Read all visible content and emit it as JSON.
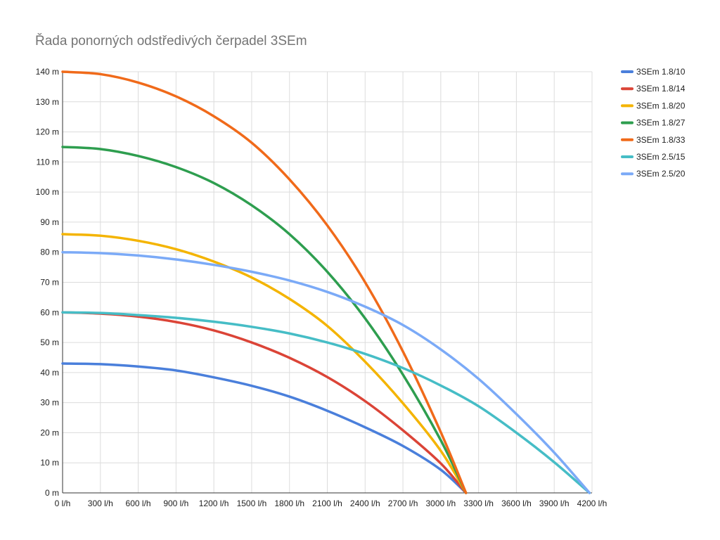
{
  "chart_data": {
    "type": "line",
    "title": "Řada ponorných odstředivých čerpadel 3SEm",
    "xlabel": "",
    "ylabel": "",
    "xlim": [
      0,
      4200
    ],
    "ylim": [
      0,
      140
    ],
    "x_ticks": [
      "0 l/h",
      "300 l/h",
      "600 l/h",
      "900 l/h",
      "1200 l/h",
      "1500 l/h",
      "1800 l/h",
      "2100 l/h",
      "2400 l/h",
      "2700 l/h",
      "3000 l/h",
      "3300 l/h",
      "3600 l/h",
      "3900 l/h",
      "4200 l/h"
    ],
    "y_ticks": [
      "0 m",
      "10 m",
      "20 m",
      "30 m",
      "40 m",
      "50 m",
      "60 m",
      "70 m",
      "80 m",
      "90 m",
      "100 m",
      "110 m",
      "120 m",
      "130 m",
      "140 m"
    ],
    "grid": true,
    "legend_position": "right",
    "series": [
      {
        "name": "3SEm 1.8/10",
        "color": "#4a7fdb",
        "points": [
          [
            0,
            43
          ],
          [
            300,
            42.8
          ],
          [
            600,
            42
          ],
          [
            900,
            40.7
          ],
          [
            1200,
            38.4
          ],
          [
            1500,
            35.6
          ],
          [
            1800,
            32
          ],
          [
            2100,
            27.3
          ],
          [
            2400,
            21.8
          ],
          [
            2700,
            15.6
          ],
          [
            3000,
            7.7
          ],
          [
            3200,
            0
          ]
        ]
      },
      {
        "name": "3SEm 1.8/14",
        "color": "#db4437",
        "points": [
          [
            0,
            60
          ],
          [
            300,
            59.6
          ],
          [
            600,
            58.6
          ],
          [
            900,
            56.8
          ],
          [
            1200,
            54
          ],
          [
            1500,
            50
          ],
          [
            1800,
            44.9
          ],
          [
            2100,
            38.5
          ],
          [
            2400,
            30.5
          ],
          [
            2700,
            20.8
          ],
          [
            3000,
            9.8
          ],
          [
            3200,
            0
          ]
        ]
      },
      {
        "name": "3SEm 1.8/20",
        "color": "#f4b400",
        "points": [
          [
            0,
            86
          ],
          [
            300,
            85.5
          ],
          [
            600,
            83.8
          ],
          [
            900,
            81
          ],
          [
            1200,
            76.9
          ],
          [
            1500,
            71.6
          ],
          [
            1800,
            64.5
          ],
          [
            2100,
            55.5
          ],
          [
            2400,
            43.6
          ],
          [
            2700,
            29.8
          ],
          [
            3000,
            14
          ],
          [
            3200,
            0
          ]
        ]
      },
      {
        "name": "3SEm 1.8/27",
        "color": "#2e9e4f",
        "points": [
          [
            0,
            115
          ],
          [
            300,
            114.3
          ],
          [
            600,
            112
          ],
          [
            900,
            108.3
          ],
          [
            1200,
            103
          ],
          [
            1500,
            95.6
          ],
          [
            1800,
            86
          ],
          [
            2100,
            73.5
          ],
          [
            2400,
            58
          ],
          [
            2700,
            39.3
          ],
          [
            3000,
            17.5
          ],
          [
            3200,
            0
          ]
        ]
      },
      {
        "name": "3SEm 1.8/33",
        "color": "#f06a1a",
        "points": [
          [
            0,
            140
          ],
          [
            300,
            139.2
          ],
          [
            600,
            136.4
          ],
          [
            900,
            131.8
          ],
          [
            1200,
            125.2
          ],
          [
            1500,
            116.4
          ],
          [
            1800,
            104.2
          ],
          [
            2100,
            88.9
          ],
          [
            2400,
            70
          ],
          [
            2700,
            47
          ],
          [
            3000,
            20.2
          ],
          [
            3200,
            0
          ]
        ]
      },
      {
        "name": "3SEm 2.5/15",
        "color": "#46bdc6",
        "points": [
          [
            0,
            60
          ],
          [
            300,
            59.8
          ],
          [
            600,
            59.1
          ],
          [
            900,
            58.2
          ],
          [
            1200,
            56.9
          ],
          [
            1500,
            55.2
          ],
          [
            1800,
            53
          ],
          [
            2100,
            50
          ],
          [
            2400,
            46.2
          ],
          [
            2700,
            41.5
          ],
          [
            3000,
            35.7
          ],
          [
            3300,
            28.8
          ],
          [
            3600,
            20
          ],
          [
            3900,
            10.2
          ],
          [
            4180,
            0
          ]
        ]
      },
      {
        "name": "3SEm 2.5/20",
        "color": "#7baaf7",
        "points": [
          [
            0,
            80
          ],
          [
            300,
            79.7
          ],
          [
            600,
            78.9
          ],
          [
            900,
            77.6
          ],
          [
            1200,
            75.8
          ],
          [
            1500,
            73.5
          ],
          [
            1800,
            70.6
          ],
          [
            2100,
            66.8
          ],
          [
            2400,
            61.9
          ],
          [
            2700,
            55.8
          ],
          [
            3000,
            47.7
          ],
          [
            3300,
            37.9
          ],
          [
            3600,
            26.2
          ],
          [
            3900,
            13.4
          ],
          [
            4180,
            0
          ]
        ]
      }
    ]
  }
}
